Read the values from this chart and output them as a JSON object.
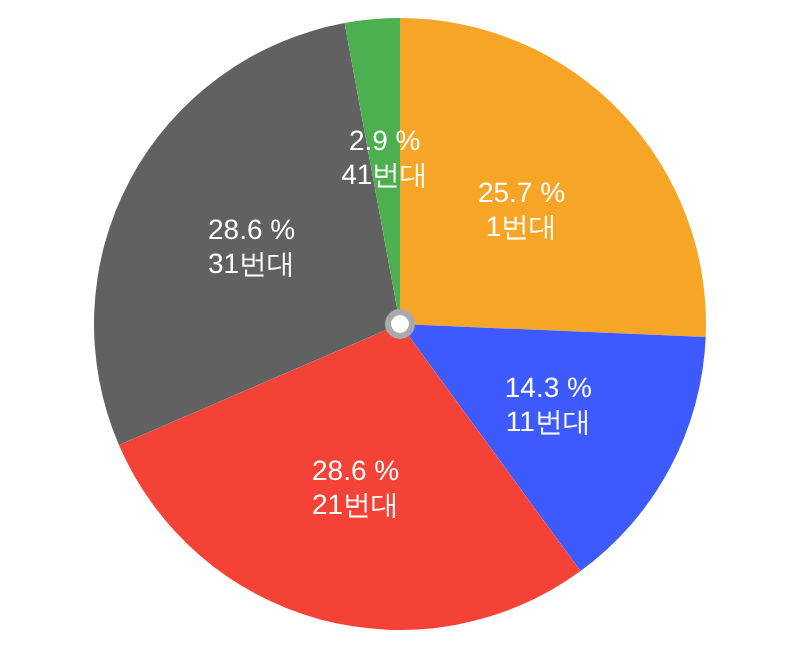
{
  "chart_data": {
    "type": "pie",
    "categories": [
      "1번대",
      "11번대",
      "21번대",
      "31번대",
      "41번대"
    ],
    "values": [
      25.7,
      14.3,
      28.6,
      28.6,
      2.9
    ],
    "value_labels": [
      "25.7 %",
      "14.3 %",
      "28.6 %",
      "28.6 %",
      "2.9 %"
    ],
    "colors": [
      "#f7a526",
      "#3d5afe",
      "#f44336",
      "#616161",
      "#4caf50"
    ]
  }
}
